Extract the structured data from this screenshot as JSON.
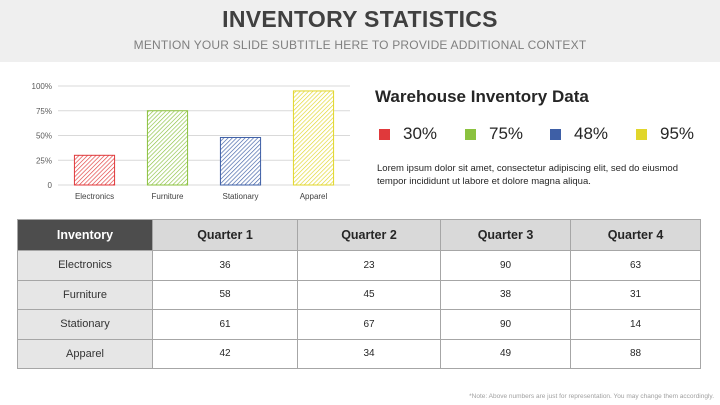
{
  "header": {
    "title": "INVENTORY STATISTICS",
    "subtitle": "MENTION YOUR SLIDE SUBTITLE HERE TO PROVIDE ADDITIONAL CONTEXT"
  },
  "chart_data": {
    "type": "bar",
    "categories": [
      "Electronics",
      "Furniture",
      "Stationary",
      "Apparel"
    ],
    "values": [
      30,
      75,
      48,
      95
    ],
    "ylim": [
      0,
      100
    ],
    "yticks": [
      "0",
      "25%",
      "50%",
      "75%",
      "100%"
    ],
    "colors": [
      "#e0393b",
      "#8bc23f",
      "#3e5fa6",
      "#e1d62b"
    ],
    "pattern": "diagonal-hatch",
    "grid": true,
    "title": "",
    "xlabel": "",
    "ylabel": ""
  },
  "legend": {
    "title": "Warehouse Inventory Data",
    "items": [
      {
        "value": "30%",
        "color": "#e0393b"
      },
      {
        "value": "75%",
        "color": "#8bc23f"
      },
      {
        "value": "48%",
        "color": "#3e5fa6"
      },
      {
        "value": "95%",
        "color": "#e1d62b"
      }
    ],
    "description": "Lorem ipsum dolor sit amet, consectetur adipiscing elit, sed do eiusmod tempor incididunt ut labore et dolore magna aliqua."
  },
  "table": {
    "headers": [
      "Inventory",
      "Quarter 1",
      "Quarter 2",
      "Quarter 3",
      "Quarter 4"
    ],
    "rows": [
      {
        "name": "Electronics",
        "q1": "36",
        "q2": "23",
        "q3": "90",
        "q4": "63"
      },
      {
        "name": "Furniture",
        "q1": "58",
        "q2": "45",
        "q3": "38",
        "q4": "31"
      },
      {
        "name": "Stationary",
        "q1": "61",
        "q2": "67",
        "q3": "90",
        "q4": "14"
      },
      {
        "name": "Apparel",
        "q1": "42",
        "q2": "34",
        "q3": "49",
        "q4": "88"
      }
    ]
  },
  "footnote": "*Note: Above numbers are just for representation. You may change them accordingly."
}
